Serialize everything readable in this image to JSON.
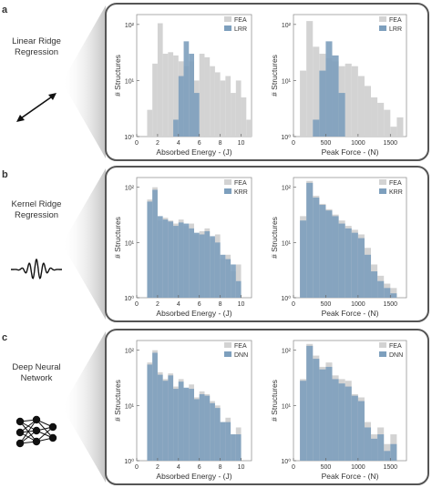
{
  "colors": {
    "fea": "#d3d3d3",
    "model": "#7d9fbd",
    "overlap": "#6e8fae",
    "panel_border": "#555555",
    "wedge": "#cccccc"
  },
  "tick_labels": {
    "energy_x": [
      "0",
      "2",
      "4",
      "6",
      "8",
      "10"
    ],
    "force_x": [
      "0",
      "500",
      "1000",
      "1500"
    ],
    "y_log": [
      "10⁰",
      "10¹",
      "10²"
    ]
  },
  "rows": [
    {
      "letter": "a",
      "method_label_lines": [
        "Linear Ridge",
        "Regression"
      ],
      "icon": "double-arrow-icon",
      "model_legend": "LRR"
    },
    {
      "letter": "b",
      "method_label_lines": [
        "Kernel Ridge",
        "Regression"
      ],
      "icon": "wavelet-icon",
      "model_legend": "KRR"
    },
    {
      "letter": "c",
      "method_label_lines": [
        "Deep Neural",
        "Network"
      ],
      "icon": "neural-network-icon",
      "model_legend": "DNN"
    }
  ],
  "chart_data": [
    {
      "id": "a-energy",
      "type": "bar",
      "xlabel": "Absorbed Energy - (J)",
      "ylabel": "# Structures",
      "xlim": [
        0,
        11
      ],
      "ylim": [
        1,
        150
      ],
      "yscale": "log",
      "bins": [
        [
          1,
          1.5
        ],
        [
          1.5,
          2
        ],
        [
          2,
          2.5
        ],
        [
          2.5,
          3
        ],
        [
          3,
          3.5
        ],
        [
          3.5,
          4
        ],
        [
          4,
          4.5
        ],
        [
          4.5,
          5
        ],
        [
          5,
          5.5
        ],
        [
          5.5,
          6
        ],
        [
          6,
          6.5
        ],
        [
          6.5,
          7
        ],
        [
          7,
          7.5
        ],
        [
          7.5,
          8
        ],
        [
          8,
          8.5
        ],
        [
          8.5,
          9
        ],
        [
          9,
          9.5
        ],
        [
          9.5,
          10
        ],
        [
          10,
          10.5
        ],
        [
          10.5,
          11
        ]
      ],
      "series": [
        {
          "name": "FEA",
          "values": [
            3,
            20,
            105,
            30,
            32,
            28,
            22,
            18,
            22,
            10,
            30,
            26,
            18,
            14,
            10,
            12,
            6,
            10,
            5,
            2
          ]
        },
        {
          "name": "LRR",
          "values": [
            0,
            0,
            0,
            0,
            0,
            2,
            12,
            50,
            30,
            6,
            0,
            0,
            0,
            0,
            0,
            0,
            0,
            0,
            0,
            0
          ]
        }
      ]
    },
    {
      "id": "a-force",
      "type": "bar",
      "xlabel": "Peak Force - (N)",
      "ylabel": "# Structures",
      "xlim": [
        0,
        1750
      ],
      "ylim": [
        1,
        150
      ],
      "yscale": "log",
      "bins": [
        [
          100,
          200
        ],
        [
          200,
          300
        ],
        [
          300,
          400
        ],
        [
          400,
          500
        ],
        [
          500,
          600
        ],
        [
          600,
          700
        ],
        [
          700,
          800
        ],
        [
          800,
          900
        ],
        [
          900,
          1000
        ],
        [
          1000,
          1100
        ],
        [
          1100,
          1200
        ],
        [
          1200,
          1300
        ],
        [
          1300,
          1400
        ],
        [
          1400,
          1500
        ],
        [
          1500,
          1600
        ],
        [
          1600,
          1700
        ]
      ],
      "series": [
        {
          "name": "FEA",
          "values": [
            15,
            115,
            40,
            30,
            25,
            22,
            18,
            20,
            18,
            12,
            8,
            5,
            4,
            3,
            1.5,
            2.2
          ]
        },
        {
          "name": "LRR",
          "values": [
            0,
            0,
            2,
            15,
            50,
            28,
            6,
            0,
            0,
            0,
            0,
            0,
            0,
            0,
            0,
            0
          ]
        }
      ]
    },
    {
      "id": "b-energy",
      "type": "bar",
      "xlabel": "Absorbed Energy - (J)",
      "ylabel": "# Structures",
      "xlim": [
        0,
        11
      ],
      "ylim": [
        1,
        150
      ],
      "yscale": "log",
      "bins": [
        [
          1,
          1.5
        ],
        [
          1.5,
          2
        ],
        [
          2,
          2.5
        ],
        [
          2.5,
          3
        ],
        [
          3,
          3.5
        ],
        [
          3.5,
          4
        ],
        [
          4,
          4.5
        ],
        [
          4.5,
          5
        ],
        [
          5,
          5.5
        ],
        [
          5.5,
          6
        ],
        [
          6,
          6.5
        ],
        [
          6.5,
          7
        ],
        [
          7,
          7.5
        ],
        [
          7.5,
          8
        ],
        [
          8,
          8.5
        ],
        [
          8.5,
          9
        ],
        [
          9,
          9.5
        ],
        [
          9.5,
          10
        ]
      ],
      "series": [
        {
          "name": "FEA",
          "values": [
            60,
            100,
            25,
            28,
            25,
            22,
            26,
            20,
            22,
            14,
            16,
            18,
            12,
            14,
            5,
            6,
            3,
            4
          ]
        },
        {
          "name": "KRR",
          "values": [
            55,
            90,
            30,
            26,
            24,
            20,
            23,
            22,
            18,
            15,
            14,
            16,
            13,
            10,
            6,
            5,
            4,
            2
          ]
        }
      ]
    },
    {
      "id": "b-force",
      "type": "bar",
      "xlabel": "Peak Force - (N)",
      "ylabel": "# Structures",
      "xlim": [
        0,
        1750
      ],
      "ylim": [
        1,
        150
      ],
      "yscale": "log",
      "bins": [
        [
          100,
          200
        ],
        [
          200,
          300
        ],
        [
          300,
          400
        ],
        [
          400,
          500
        ],
        [
          500,
          600
        ],
        [
          600,
          700
        ],
        [
          700,
          800
        ],
        [
          800,
          900
        ],
        [
          900,
          1000
        ],
        [
          1000,
          1100
        ],
        [
          1100,
          1200
        ],
        [
          1200,
          1300
        ],
        [
          1300,
          1400
        ],
        [
          1400,
          1500
        ],
        [
          1500,
          1600
        ]
      ],
      "series": [
        {
          "name": "FEA",
          "values": [
            30,
            130,
            70,
            50,
            40,
            32,
            25,
            20,
            17,
            14,
            8,
            4,
            2.5,
            1.8,
            1.5
          ]
        },
        {
          "name": "KRR",
          "values": [
            25,
            120,
            65,
            48,
            38,
            30,
            22,
            18,
            15,
            12,
            6,
            3,
            2,
            1.5,
            1.2
          ]
        }
      ]
    },
    {
      "id": "c-energy",
      "type": "bar",
      "xlabel": "Absorbed Energy - (J)",
      "ylabel": "# Structures",
      "xlim": [
        0,
        11
      ],
      "ylim": [
        1,
        150
      ],
      "yscale": "log",
      "bins": [
        [
          1,
          1.5
        ],
        [
          1.5,
          2
        ],
        [
          2,
          2.5
        ],
        [
          2.5,
          3
        ],
        [
          3,
          3.5
        ],
        [
          3.5,
          4
        ],
        [
          4,
          4.5
        ],
        [
          4.5,
          5
        ],
        [
          5,
          5.5
        ],
        [
          5.5,
          6
        ],
        [
          6,
          6.5
        ],
        [
          6.5,
          7
        ],
        [
          7,
          7.5
        ],
        [
          7.5,
          8
        ],
        [
          8,
          8.5
        ],
        [
          8.5,
          9
        ],
        [
          9,
          9.5
        ],
        [
          9.5,
          10
        ]
      ],
      "series": [
        {
          "name": "FEA",
          "values": [
            60,
            100,
            40,
            30,
            38,
            22,
            30,
            20,
            24,
            14,
            18,
            16,
            12,
            10,
            5,
            6,
            3,
            4
          ]
        },
        {
          "name": "DNN",
          "values": [
            55,
            90,
            36,
            28,
            35,
            20,
            27,
            21,
            20,
            13,
            16,
            15,
            11,
            9,
            5,
            5,
            3,
            3
          ]
        }
      ]
    },
    {
      "id": "c-force",
      "type": "bar",
      "xlabel": "Peak Force - (N)",
      "ylabel": "# Structures",
      "xlim": [
        0,
        1750
      ],
      "ylim": [
        1,
        150
      ],
      "yscale": "log",
      "bins": [
        [
          100,
          200
        ],
        [
          200,
          300
        ],
        [
          300,
          400
        ],
        [
          400,
          500
        ],
        [
          500,
          600
        ],
        [
          600,
          700
        ],
        [
          700,
          800
        ],
        [
          800,
          900
        ],
        [
          900,
          1000
        ],
        [
          1000,
          1100
        ],
        [
          1100,
          1200
        ],
        [
          1200,
          1300
        ],
        [
          1300,
          1400
        ],
        [
          1400,
          1500
        ],
        [
          1500,
          1600
        ]
      ],
      "series": [
        {
          "name": "FEA",
          "values": [
            30,
            130,
            80,
            50,
            60,
            35,
            30,
            28,
            16,
            14,
            5,
            3,
            4,
            2,
            3
          ]
        },
        {
          "name": "DNN",
          "values": [
            28,
            120,
            70,
            45,
            50,
            30,
            25,
            22,
            15,
            12,
            4,
            2.5,
            3,
            1.5,
            2
          ]
        }
      ]
    }
  ]
}
